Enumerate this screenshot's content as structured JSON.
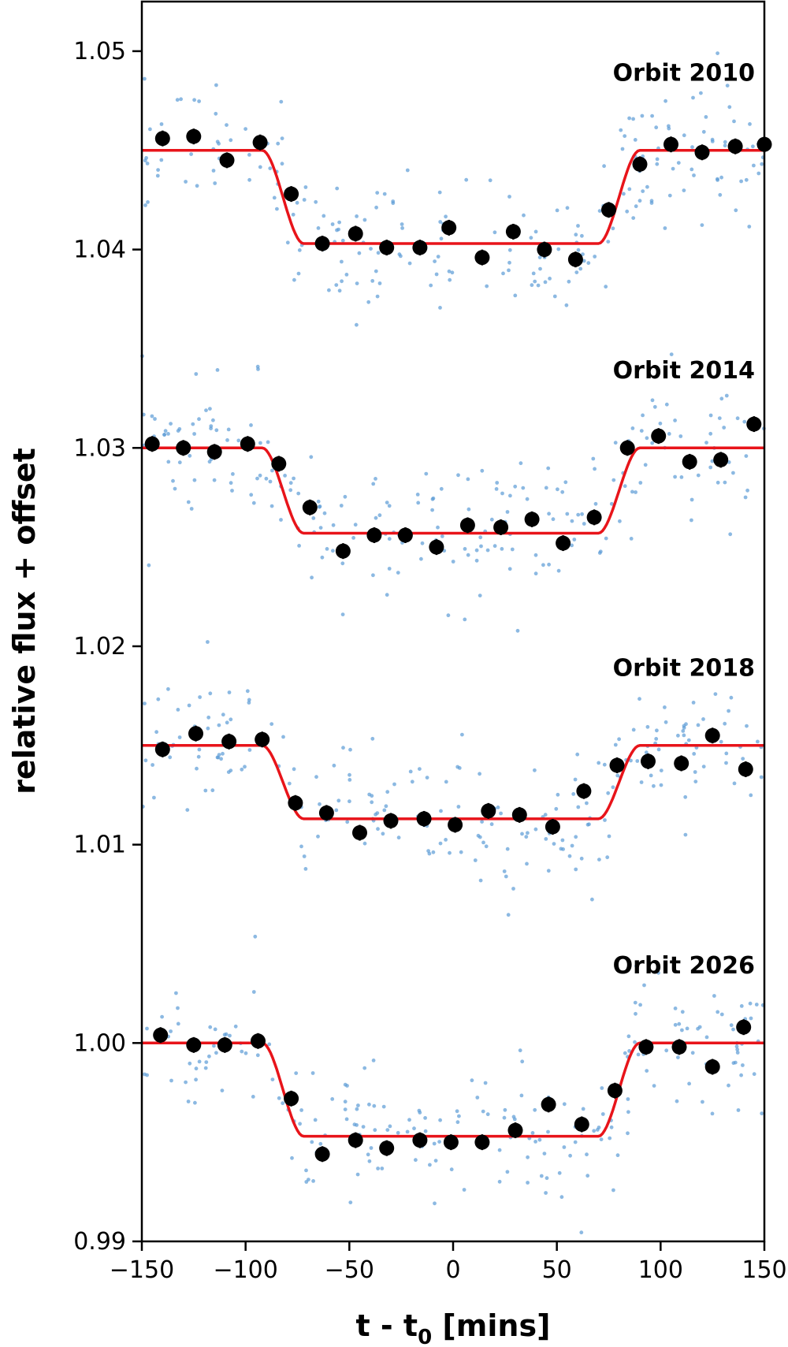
{
  "chart_data": {
    "type": "scatter",
    "xlabel_main": "t - t",
    "xlabel_sub": "0",
    "xlabel_tail": " [mins]",
    "ylabel": "relative flux + offset",
    "xlim": [
      -150,
      150
    ],
    "ylim": [
      0.99,
      1.0525
    ],
    "xticks": [
      -150,
      -100,
      -50,
      0,
      50,
      100,
      150
    ],
    "xtick_labels": [
      "−150",
      "−100",
      "−50",
      "0",
      "50",
      "100",
      "150"
    ],
    "yticks": [
      0.99,
      1.0,
      1.01,
      1.02,
      1.03,
      1.04,
      1.05
    ],
    "ytick_labels": [
      "0.99",
      "1.00",
      "1.01",
      "1.02",
      "1.03",
      "1.04",
      "1.05"
    ],
    "colors": {
      "raw": "#5b9bd5",
      "binned": "#000000",
      "model": "#e8141a"
    },
    "series": [
      {
        "label": "Orbit 2010",
        "baseline": 1.045,
        "depth": 0.0047,
        "binned_x": [
          -140,
          -125,
          -109,
          -93,
          -78,
          -63,
          -47,
          -32,
          -16,
          -2,
          14,
          29,
          44,
          59,
          75,
          90,
          105,
          120,
          136,
          150
        ],
        "binned_y": [
          1.0456,
          1.0457,
          1.0445,
          1.0454,
          1.0428,
          1.0403,
          1.0408,
          1.0401,
          1.0401,
          1.0411,
          1.0396,
          1.0409,
          1.04,
          1.0395,
          1.042,
          1.0443,
          1.0453,
          1.0449,
          1.0452,
          1.0453
        ]
      },
      {
        "label": "Orbit 2014",
        "baseline": 1.03,
        "depth": 0.0043,
        "binned_x": [
          -145,
          -130,
          -115,
          -99,
          -84,
          -69,
          -53,
          -38,
          -23,
          -8,
          7,
          23,
          38,
          53,
          68,
          84,
          99,
          114,
          129,
          145
        ],
        "binned_y": [
          1.0302,
          1.03,
          1.0298,
          1.0302,
          1.0292,
          1.027,
          1.0248,
          1.0256,
          1.0256,
          1.025,
          1.0261,
          1.026,
          1.0264,
          1.0252,
          1.0265,
          1.03,
          1.0306,
          1.0293,
          1.0294,
          1.0312
        ]
      },
      {
        "label": "Orbit 2018",
        "baseline": 1.015,
        "depth": 0.0037,
        "binned_x": [
          -140,
          -124,
          -108,
          -92,
          -76,
          -61,
          -45,
          -30,
          -14,
          1,
          17,
          32,
          48,
          63,
          79,
          94,
          110,
          125,
          141
        ],
        "binned_y": [
          1.0148,
          1.0156,
          1.0152,
          1.0153,
          1.0121,
          1.0116,
          1.0106,
          1.0112,
          1.0113,
          1.011,
          1.0117,
          1.0115,
          1.0109,
          1.0127,
          1.014,
          1.0142,
          1.0141,
          1.0155,
          1.0138
        ]
      },
      {
        "label": "Orbit 2026",
        "baseline": 1.0,
        "depth": 0.0047,
        "binned_x": [
          -141,
          -125,
          -110,
          -94,
          -78,
          -63,
          -47,
          -32,
          -16,
          -1,
          14,
          30,
          46,
          62,
          78,
          93,
          109,
          125,
          140
        ],
        "binned_y": [
          1.0004,
          0.9999,
          0.9999,
          1.0001,
          0.9972,
          0.9944,
          0.9951,
          0.9947,
          0.9951,
          0.995,
          0.995,
          0.9956,
          0.9969,
          0.9959,
          0.9976,
          0.9998,
          0.9998,
          0.9988,
          1.0008
        ]
      }
    ],
    "model": {
      "ingress_start": -92,
      "ingress_end": -72,
      "egress_start": 70,
      "egress_end": 90
    }
  }
}
